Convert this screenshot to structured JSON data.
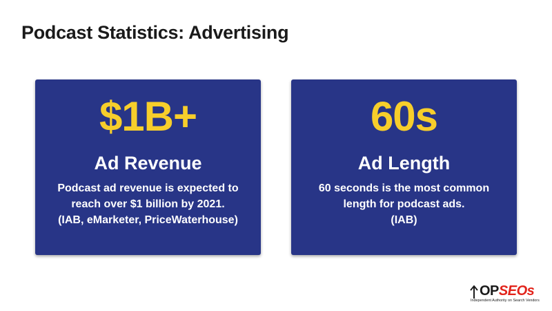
{
  "page": {
    "title": "Podcast Statistics: Advertising"
  },
  "cards": [
    {
      "stat": "$1B+",
      "heading": "Ad Revenue",
      "lines": [
        "Podcast ad revenue is expected to",
        "reach over $1 billion by 2021.",
        "(IAB, eMarketer, PriceWaterhouse)"
      ]
    },
    {
      "stat": "60s",
      "heading": "Ad Length",
      "lines": [
        "60 seconds is the most common",
        "length for podcast ads.",
        "(IAB)"
      ]
    }
  ],
  "logo": {
    "icon": "up-arrow-icon",
    "text_dark": "OP",
    "text_accent": "SEOs",
    "tagline": "Independent Authority on Search Vendors"
  },
  "colors": {
    "card_background": "#283587",
    "stat_yellow": "#f7ce2b",
    "logo_red": "#e2231a",
    "title_text": "#1a1a1a"
  }
}
